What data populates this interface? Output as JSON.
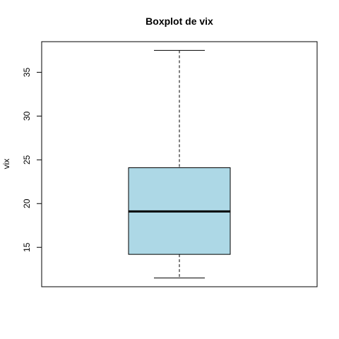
{
  "chart_data": {
    "type": "box",
    "title": "Boxplot de vix",
    "xlabel": "",
    "ylabel": "vix",
    "ylim": [
      10.5,
      38.5
    ],
    "yticks": [
      15,
      20,
      25,
      30,
      35
    ],
    "grid": false,
    "series": [
      {
        "whisker_low": 11.5,
        "q1": 14.2,
        "median": 19.1,
        "q3": 24.1,
        "whisker_high": 37.5
      }
    ],
    "colors": {
      "box_fill": "#add8e6",
      "stroke": "#000000"
    }
  }
}
